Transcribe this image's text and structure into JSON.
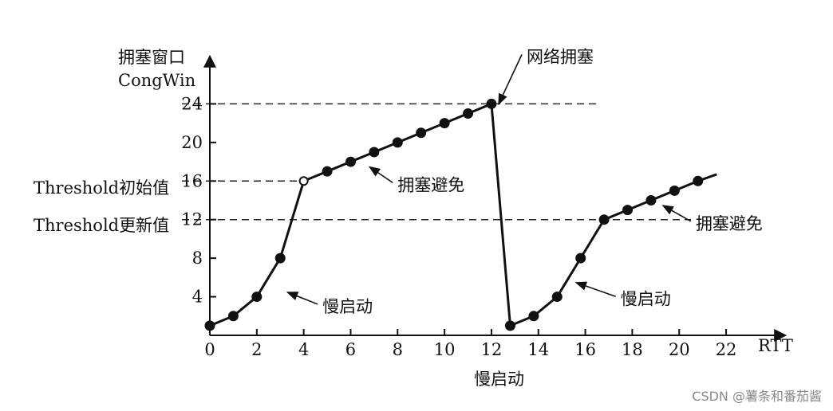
{
  "chart_data": {
    "type": "line",
    "ylabel_cn": "拥塞窗口",
    "ylabel_en": "CongWin",
    "xlabel_unit": "RTT",
    "xlabel_below": "慢启动",
    "xticks": [
      0,
      2,
      4,
      6,
      8,
      10,
      12,
      14,
      16,
      18,
      20,
      22
    ],
    "yticks": [
      4,
      8,
      12,
      16,
      20,
      24
    ],
    "xlim": [
      0,
      23.8
    ],
    "ylim": [
      0,
      28
    ],
    "series": [
      {
        "x": [
          0,
          1,
          2,
          3,
          4,
          5,
          6,
          7,
          8,
          9,
          10,
          11,
          12
        ],
        "y": [
          1,
          2,
          4,
          8,
          16,
          17,
          18,
          19,
          20,
          21,
          22,
          23,
          24
        ]
      },
      {
        "x": [
          12.8,
          13.8,
          14.8,
          15.8,
          16.8,
          17.8,
          18.8,
          19.8,
          20.8
        ],
        "y": [
          1,
          2,
          4,
          8,
          12,
          13,
          14,
          15,
          16
        ]
      }
    ],
    "line_end": {
      "x": 21.6,
      "y": 16.7
    },
    "open_point_index": 4,
    "reference_lines": [
      {
        "y": 24,
        "x_end": 16.5
      },
      {
        "y": 16,
        "x_end": 4,
        "label": "Threshold初始值"
      },
      {
        "y": 12,
        "x_end": 20.5,
        "label": "Threshold更新值"
      }
    ],
    "annotations": [
      {
        "text": "网络拥塞",
        "target": {
          "x": 12.1,
          "y": 24.3
        },
        "text_pos": {
          "x": 13.5,
          "y": 28.3
        }
      },
      {
        "text": "拥塞避免",
        "target": {
          "x": 6.6,
          "y": 17.8
        },
        "text_pos": {
          "x": 8.0,
          "y": 15.0
        }
      },
      {
        "text": "慢启动",
        "target": {
          "x": 3.1,
          "y": 4.8
        },
        "text_pos": {
          "x": 4.8,
          "y": 2.4
        }
      },
      {
        "text": "慢启动",
        "target": {
          "x": 15.4,
          "y": 5.8
        },
        "text_pos": {
          "x": 17.5,
          "y": 3.2
        }
      },
      {
        "text": "拥塞避免",
        "target": {
          "x": 19.1,
          "y": 13.8
        },
        "text_pos": {
          "x": 20.7,
          "y": 11.0
        }
      }
    ]
  },
  "watermark": "CSDN @薯条和番茄酱"
}
